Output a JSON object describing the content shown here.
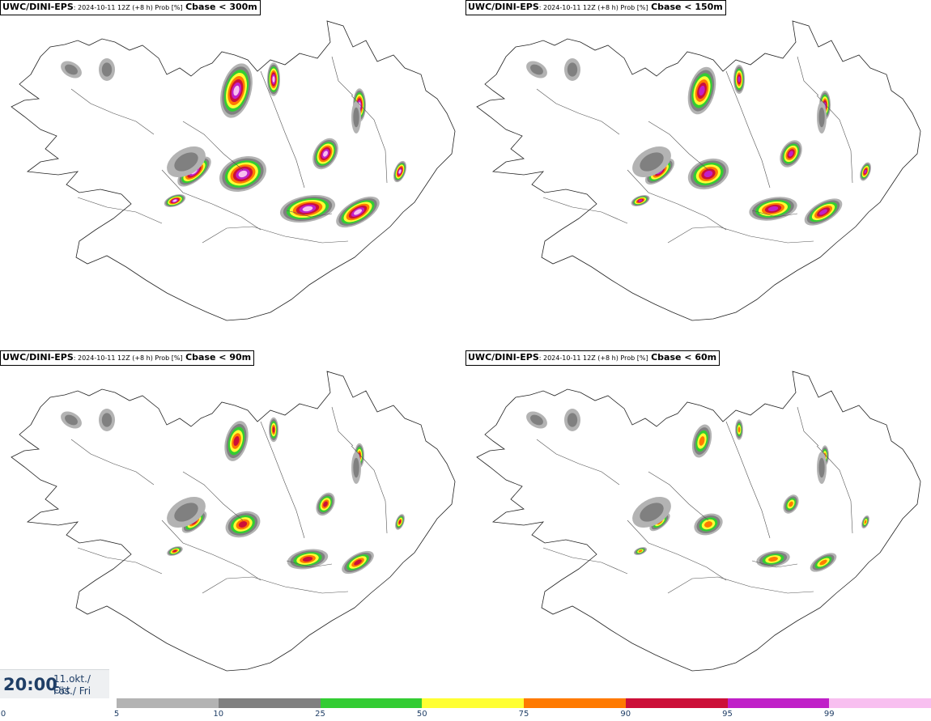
{
  "panels": [
    {
      "model": "UWC/DINI-EPS",
      "info": ": 2024-10-11 12Z (+8 h) Prob [%]",
      "param": "Cbase < 300m",
      "level": 4
    },
    {
      "model": "UWC/DINI-EPS",
      "info": ": 2024-10-11 12Z (+8 h) Prob [%]",
      "param": "Cbase < 150m",
      "level": 3
    },
    {
      "model": "UWC/DINI-EPS",
      "info": ": 2024-10-11 12Z (+8 h) Prob [%]",
      "param": "Cbase < 90m",
      "level": 2
    },
    {
      "model": "UWC/DINI-EPS",
      "info": ": 2024-10-11 12Z (+8 h) Prob [%]",
      "param": "Cbase < 60m",
      "level": 1
    }
  ],
  "valid_time": {
    "time": "20:00",
    "date": "11.okt./ Oct",
    "day": "Fös./ Fri"
  },
  "legend": {
    "ticks": [
      "0",
      "5",
      "10",
      "25",
      "50",
      "75",
      "90",
      "95",
      "99"
    ],
    "colors": [
      "#b3b3b3",
      "#808080",
      "#33cc33",
      "#ffff33",
      "#ff7a00",
      "#cc1039",
      "#c020c8",
      "#f8bff0"
    ]
  }
}
